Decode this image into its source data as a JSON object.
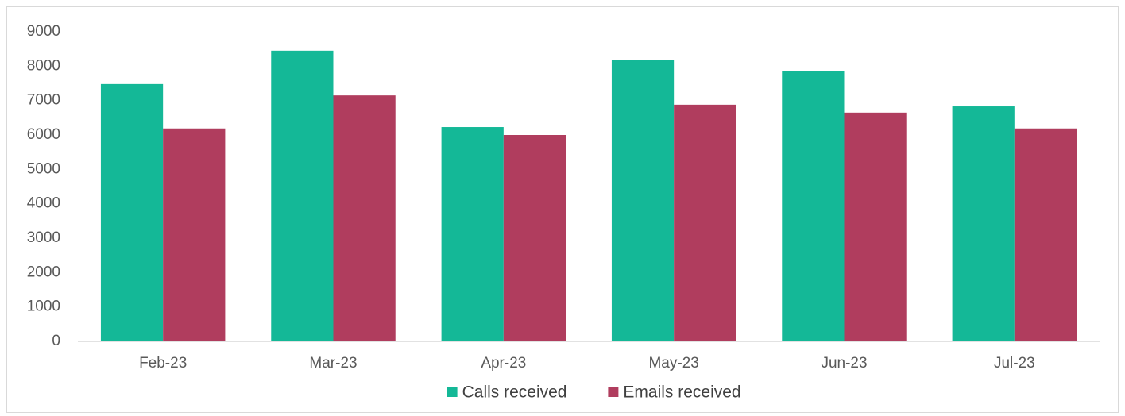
{
  "chart_data": {
    "type": "bar",
    "categories": [
      "Feb-23",
      "Mar-23",
      "Apr-23",
      "May-23",
      "Jun-23",
      "Jul-23"
    ],
    "series": [
      {
        "name": "Calls received",
        "color": "#14b897",
        "values": [
          7480,
          8450,
          6230,
          8170,
          7850,
          6830
        ]
      },
      {
        "name": "Emails received",
        "color": "#b03d5e",
        "values": [
          6190,
          7150,
          6000,
          6880,
          6650,
          6190
        ]
      }
    ],
    "ylim": [
      0,
      9000
    ],
    "yticks": [
      0,
      1000,
      2000,
      3000,
      4000,
      5000,
      6000,
      7000,
      8000,
      9000
    ],
    "grid": false,
    "legend": "bottom"
  }
}
